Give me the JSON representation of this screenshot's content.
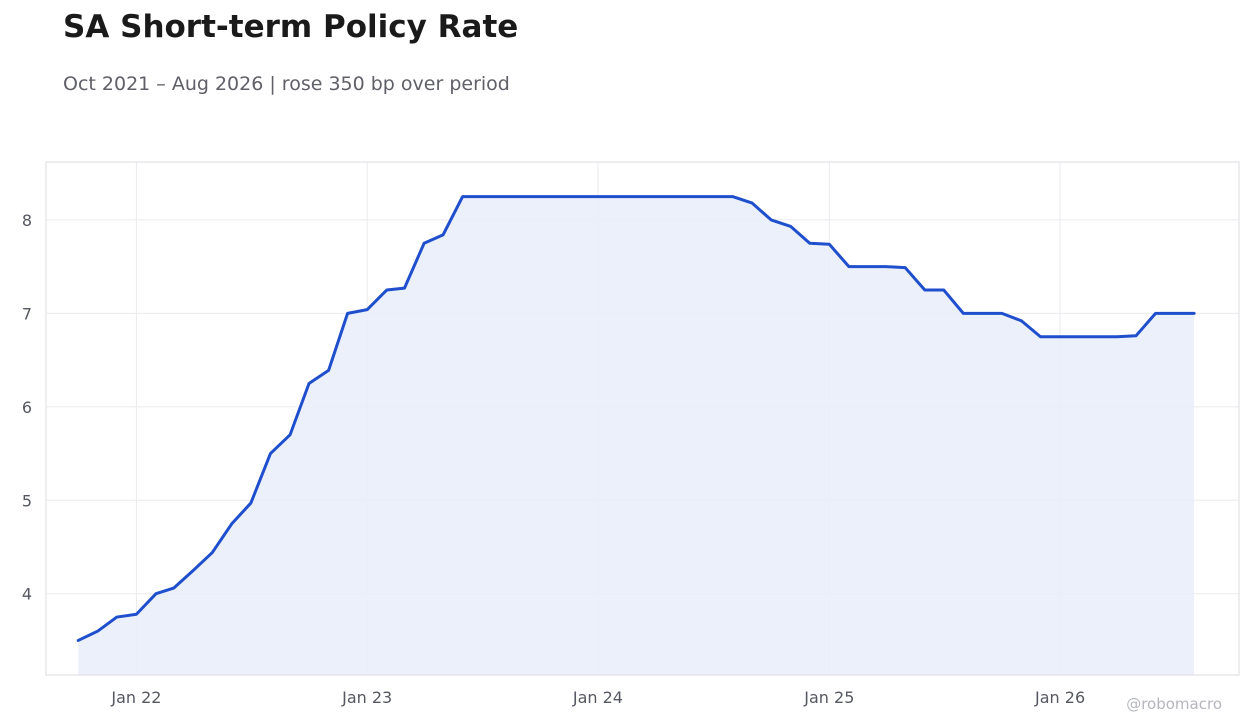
{
  "title": "SA Short-term Policy Rate",
  "subtitle": "Oct 2021 – Aug 2026 | rose 350 bp over period",
  "watermark": "@robomacro",
  "colors": {
    "line": "#1f4fcc",
    "fill": "#e9eefb",
    "grid": "#ebebef",
    "frame": "#dcdde2"
  },
  "chart_data": {
    "type": "area",
    "title": "SA Short-term Policy Rate",
    "subtitle": "Oct 2021 – Aug 2026 | rose 350 bp over period",
    "xlabel": "",
    "ylabel": "",
    "grid": true,
    "legend": "none",
    "ylim": [
      3.13,
      8.62
    ],
    "xlim": [
      "2021-08-11",
      "2026-10-11"
    ],
    "x_ticks": [
      {
        "date": "2022-01-01",
        "label": "Jan 22"
      },
      {
        "date": "2023-01-01",
        "label": "Jan 23"
      },
      {
        "date": "2024-01-01",
        "label": "Jan 24"
      },
      {
        "date": "2025-01-01",
        "label": "Jan 25"
      },
      {
        "date": "2026-01-01",
        "label": "Jan 26"
      }
    ],
    "y_ticks": [
      4,
      5,
      6,
      7,
      8
    ],
    "series": [
      {
        "x": [
          "2021-10-01",
          "2021-11-01",
          "2021-12-01",
          "2022-01-01",
          "2022-02-01",
          "2022-03-01",
          "2022-04-01",
          "2022-05-01",
          "2022-06-01",
          "2022-07-01",
          "2022-08-01",
          "2022-09-01",
          "2022-10-01",
          "2022-11-01",
          "2022-12-01",
          "2023-01-01",
          "2023-02-01",
          "2023-03-01",
          "2023-04-01",
          "2023-05-01",
          "2023-06-01",
          "2023-07-01",
          "2023-08-01",
          "2023-09-01",
          "2023-10-01",
          "2023-11-01",
          "2023-12-01",
          "2024-01-01",
          "2024-02-01",
          "2024-03-01",
          "2024-04-01",
          "2024-05-01",
          "2024-06-01",
          "2024-07-01",
          "2024-08-01",
          "2024-09-01",
          "2024-10-01",
          "2024-11-01",
          "2024-12-01",
          "2025-01-01",
          "2025-02-01",
          "2025-03-01",
          "2025-04-01",
          "2025-05-01",
          "2025-06-01",
          "2025-07-01",
          "2025-08-01",
          "2025-09-01",
          "2025-10-01",
          "2025-11-01",
          "2025-12-01",
          "2026-01-01",
          "2026-02-01",
          "2026-03-01",
          "2026-04-01",
          "2026-05-01",
          "2026-06-01",
          "2026-07-01",
          "2026-08-01"
        ],
        "values": [
          3.5,
          3.6,
          3.75,
          3.78,
          4.0,
          4.06,
          4.25,
          4.44,
          4.75,
          4.97,
          5.5,
          5.7,
          6.25,
          6.39,
          7.0,
          7.04,
          7.25,
          7.27,
          7.75,
          7.84,
          8.25,
          8.25,
          8.25,
          8.25,
          8.25,
          8.25,
          8.25,
          8.25,
          8.25,
          8.25,
          8.25,
          8.25,
          8.25,
          8.25,
          8.25,
          8.18,
          8.0,
          7.93,
          7.75,
          7.74,
          7.5,
          7.5,
          7.5,
          7.49,
          7.25,
          7.25,
          7.0,
          7.0,
          7.0,
          6.92,
          6.75,
          6.75,
          6.75,
          6.75,
          6.75,
          6.76,
          7.0,
          7.0,
          7.0
        ]
      }
    ]
  }
}
